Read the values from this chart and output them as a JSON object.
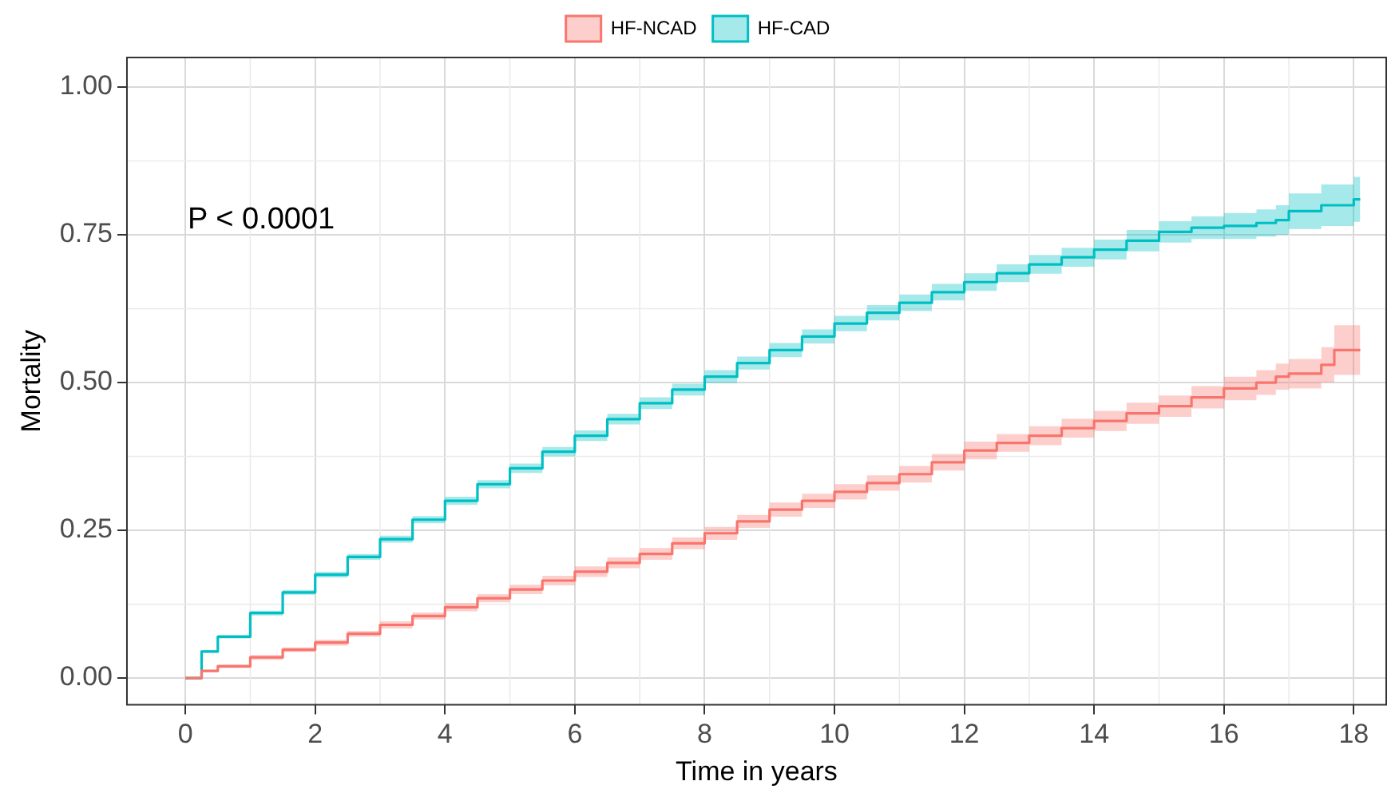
{
  "chart_data": {
    "type": "step",
    "xlabel": "Time in years",
    "ylabel": "Mortality",
    "annotations": [
      "P < 0.0001"
    ],
    "x": [
      0,
      0.25,
      0.5,
      1,
      1.5,
      2,
      2.5,
      3,
      3.5,
      4,
      4.5,
      5,
      5.5,
      6,
      6.5,
      7,
      7.5,
      8,
      8.5,
      9,
      9.5,
      10,
      10.5,
      11,
      11.5,
      12,
      12.5,
      13,
      13.5,
      14,
      14.5,
      15,
      15.5,
      16,
      16.5,
      16.8,
      17,
      17.5,
      17.7,
      18,
      18.1
    ],
    "series": [
      {
        "name": "HF-NCAD",
        "color": "#f8766d",
        "values": [
          0,
          0.012,
          0.02,
          0.035,
          0.048,
          0.06,
          0.075,
          0.09,
          0.105,
          0.12,
          0.135,
          0.15,
          0.165,
          0.18,
          0.195,
          0.21,
          0.228,
          0.245,
          0.265,
          0.285,
          0.3,
          0.315,
          0.33,
          0.345,
          0.365,
          0.385,
          0.398,
          0.41,
          0.423,
          0.435,
          0.448,
          0.46,
          0.475,
          0.49,
          0.5,
          0.51,
          0.515,
          0.53,
          0.555,
          0.555,
          0.555
        ],
        "lower": [
          0,
          0.01,
          0.017,
          0.031,
          0.044,
          0.055,
          0.07,
          0.084,
          0.099,
          0.113,
          0.128,
          0.142,
          0.157,
          0.171,
          0.186,
          0.2,
          0.218,
          0.234,
          0.254,
          0.273,
          0.288,
          0.302,
          0.317,
          0.331,
          0.351,
          0.37,
          0.383,
          0.394,
          0.407,
          0.418,
          0.43,
          0.442,
          0.456,
          0.47,
          0.479,
          0.488,
          0.49,
          0.5,
          0.513,
          0.513,
          0.513
        ],
        "upper": [
          0,
          0.014,
          0.023,
          0.039,
          0.052,
          0.065,
          0.08,
          0.096,
          0.111,
          0.127,
          0.142,
          0.158,
          0.173,
          0.189,
          0.204,
          0.22,
          0.238,
          0.256,
          0.276,
          0.297,
          0.312,
          0.328,
          0.343,
          0.359,
          0.379,
          0.4,
          0.413,
          0.426,
          0.439,
          0.452,
          0.466,
          0.478,
          0.494,
          0.51,
          0.521,
          0.532,
          0.54,
          0.56,
          0.597,
          0.597,
          0.597
        ]
      },
      {
        "name": "HF-CAD",
        "color": "#00bfc4",
        "values": [
          0,
          0.045,
          0.07,
          0.11,
          0.145,
          0.175,
          0.205,
          0.235,
          0.268,
          0.3,
          0.328,
          0.355,
          0.383,
          0.41,
          0.438,
          0.465,
          0.488,
          0.51,
          0.533,
          0.555,
          0.578,
          0.6,
          0.618,
          0.635,
          0.653,
          0.67,
          0.685,
          0.7,
          0.712,
          0.725,
          0.74,
          0.755,
          0.762,
          0.765,
          0.77,
          0.775,
          0.79,
          0.8,
          0.8,
          0.81,
          0.81
        ],
        "lower": [
          0,
          0.043,
          0.067,
          0.106,
          0.141,
          0.17,
          0.2,
          0.229,
          0.262,
          0.293,
          0.321,
          0.347,
          0.375,
          0.401,
          0.429,
          0.455,
          0.478,
          0.499,
          0.522,
          0.543,
          0.566,
          0.587,
          0.605,
          0.621,
          0.639,
          0.655,
          0.67,
          0.684,
          0.696,
          0.708,
          0.722,
          0.737,
          0.743,
          0.743,
          0.747,
          0.75,
          0.76,
          0.765,
          0.765,
          0.772,
          0.772
        ],
        "upper": [
          0,
          0.047,
          0.073,
          0.114,
          0.149,
          0.18,
          0.21,
          0.241,
          0.274,
          0.307,
          0.335,
          0.363,
          0.391,
          0.419,
          0.447,
          0.475,
          0.498,
          0.521,
          0.544,
          0.567,
          0.59,
          0.613,
          0.631,
          0.649,
          0.667,
          0.685,
          0.7,
          0.716,
          0.728,
          0.742,
          0.758,
          0.773,
          0.781,
          0.787,
          0.793,
          0.8,
          0.82,
          0.835,
          0.835,
          0.848,
          0.848
        ]
      }
    ],
    "xlim": [
      -0.9,
      18.5
    ],
    "xticks": [
      0,
      2,
      4,
      6,
      8,
      10,
      12,
      14,
      16,
      18
    ],
    "ylim": [
      -0.045,
      1.05
    ],
    "yticks": [
      {
        "value": 0,
        "label": "0.00"
      },
      {
        "value": 0.25,
        "label": "0.25"
      },
      {
        "value": 0.5,
        "label": "0.50"
      },
      {
        "value": 0.75,
        "label": "0.75"
      },
      {
        "value": 1,
        "label": "1.00"
      }
    ],
    "grid": true,
    "legend": "top",
    "line_style": "solid",
    "marker": "none"
  }
}
